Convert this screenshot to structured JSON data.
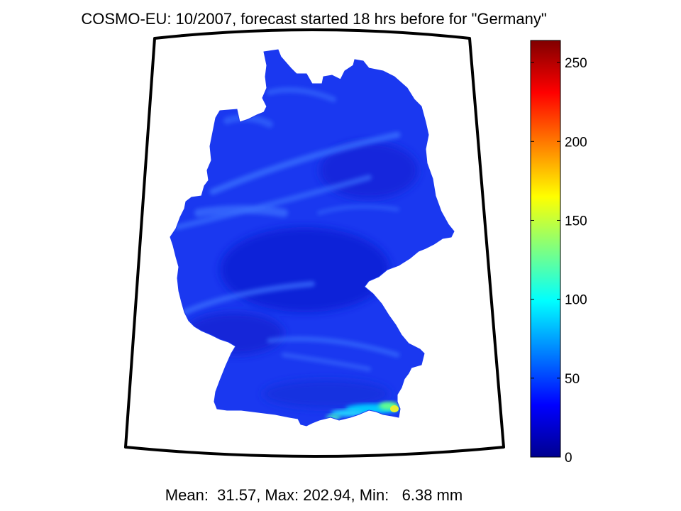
{
  "title": "COSMO-EU: 10/2007, forecast started 18 hrs before for \"Germany\"",
  "footer": "Mean:  31.57, Max: 202.94, Min:   6.38 mm",
  "colorbar": {
    "min": 0,
    "max": 264,
    "ticks": [
      0,
      50,
      100,
      150,
      200,
      250
    ],
    "colormap": "jet"
  },
  "chart_data": {
    "type": "heatmap",
    "title": "COSMO-EU: 10/2007, forecast started 18 hrs before for \"Germany\"",
    "region": "Germany",
    "stats": {
      "mean": 31.57,
      "max": 202.94,
      "min": 6.38,
      "unit": "mm"
    },
    "color_range": [
      0,
      264
    ],
    "colorbar_ticks": [
      0,
      50,
      100,
      150,
      200,
      250
    ],
    "field_note": "mostly 20-50 mm; maxima near southern border (Alps)"
  },
  "colors": {
    "base_field": "#1a38f0",
    "deep_field": "#0f22d8",
    "streak": "#3a72ff",
    "frame": "#000000",
    "map_background": "#ffffff"
  }
}
